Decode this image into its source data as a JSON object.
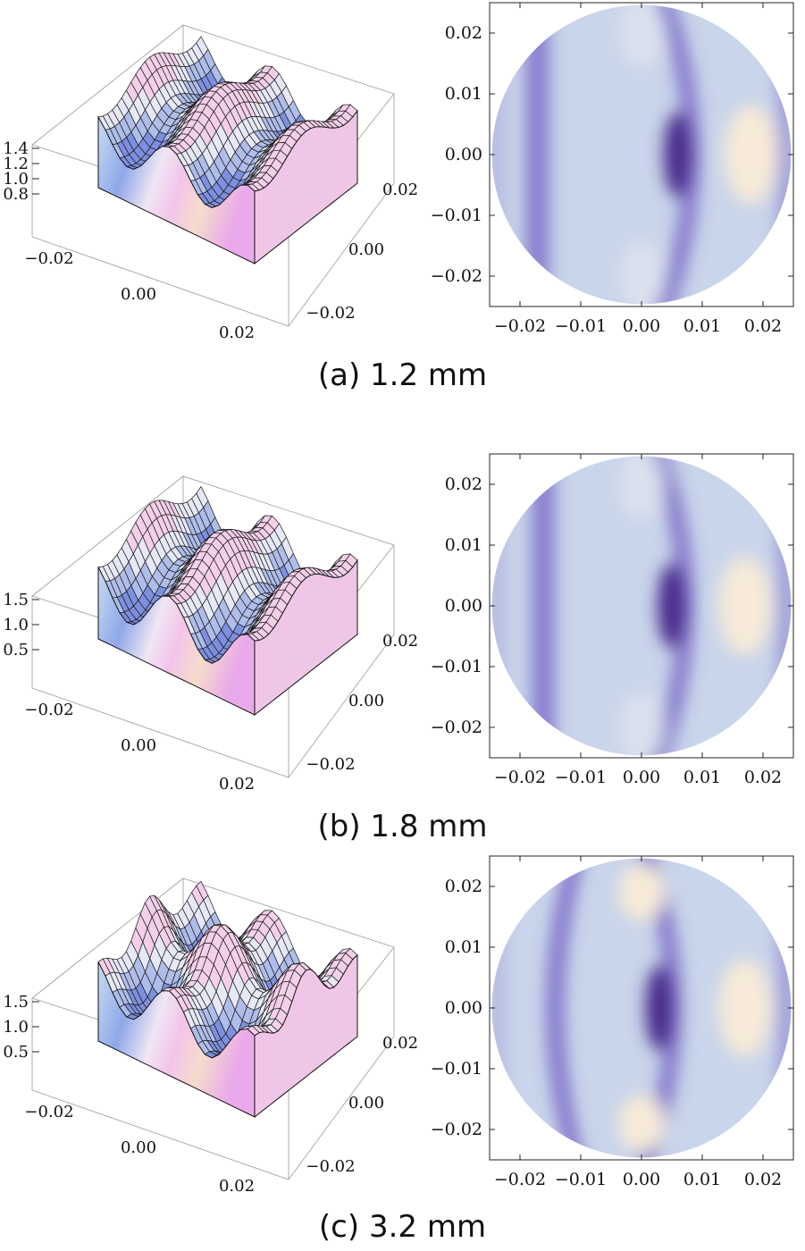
{
  "panels": [
    {
      "caption": "(a) 1.2 mm",
      "surface": {
        "z_ticks": [
          "1.4",
          "1.2",
          "1.0",
          "0.8"
        ],
        "x_ticks": [
          "−0.02",
          "0.00",
          "0.02"
        ],
        "y_ticks": [
          "0.02",
          "0.00",
          "−0.02"
        ]
      },
      "density": {
        "x_ticks": [
          "−0.02",
          "−0.01",
          "0.00",
          "0.01",
          "0.02"
        ],
        "y_ticks": [
          "0.02",
          "0.01",
          "0.00",
          "−0.01",
          "−0.02"
        ]
      }
    },
    {
      "caption": "(b) 1.8 mm",
      "surface": {
        "z_ticks": [
          "1.5",
          "1.0",
          "0.5"
        ],
        "x_ticks": [
          "−0.02",
          "0.00",
          "0.02"
        ],
        "y_ticks": [
          "0.02",
          "0.00",
          "−0.02"
        ]
      },
      "density": {
        "x_ticks": [
          "−0.02",
          "−0.01",
          "0.00",
          "0.01",
          "0.02"
        ],
        "y_ticks": [
          "0.02",
          "0.01",
          "0.00",
          "−0.01",
          "−0.02"
        ]
      }
    },
    {
      "caption": "(c) 3.2 mm",
      "surface": {
        "z_ticks": [
          "1.5",
          "1.0",
          "0.5"
        ],
        "x_ticks": [
          "−0.02",
          "0.00",
          "0.02"
        ],
        "y_ticks": [
          "0.02",
          "0.00",
          "−0.02"
        ]
      },
      "density": {
        "x_ticks": [
          "−0.02",
          "−0.01",
          "0.00",
          "0.01",
          "0.02"
        ],
        "y_ticks": [
          "0.02",
          "0.01",
          "0.00",
          "−0.01",
          "−0.02"
        ]
      }
    }
  ],
  "chart_data": [
    {
      "type": "surface3d",
      "panel": "a",
      "x_range": [
        -0.025,
        0.025
      ],
      "y_range": [
        -0.025,
        0.025
      ],
      "z_range": [
        0.7,
        1.45
      ],
      "z_ticks": [
        0.8,
        1.0,
        1.2,
        1.4
      ]
    },
    {
      "type": "heatmap",
      "panel": "a",
      "shape": "disk",
      "radius": 0.025,
      "x_range": [
        -0.025,
        0.025
      ],
      "y_range": [
        -0.025,
        0.025
      ],
      "features": [
        {
          "kind": "minimum",
          "x": 0.006,
          "y": 0.0
        },
        {
          "kind": "maximum",
          "x": 0.018,
          "y": 0.0
        },
        {
          "kind": "dark-band",
          "x": -0.017
        }
      ]
    },
    {
      "type": "surface3d",
      "panel": "b",
      "x_range": [
        -0.025,
        0.025
      ],
      "y_range": [
        -0.025,
        0.025
      ],
      "z_range": [
        0.4,
        1.6
      ],
      "z_ticks": [
        0.5,
        1.0,
        1.5
      ]
    },
    {
      "type": "heatmap",
      "panel": "b",
      "shape": "disk",
      "radius": 0.025,
      "x_range": [
        -0.025,
        0.025
      ],
      "y_range": [
        -0.025,
        0.025
      ],
      "features": [
        {
          "kind": "minimum",
          "x": 0.005,
          "y": 0.0
        },
        {
          "kind": "maximum",
          "x": 0.017,
          "y": 0.0
        },
        {
          "kind": "dark-band",
          "x": -0.016
        }
      ]
    },
    {
      "type": "surface3d",
      "panel": "c",
      "x_range": [
        -0.025,
        0.025
      ],
      "y_range": [
        -0.025,
        0.025
      ],
      "z_range": [
        0.3,
        1.8
      ],
      "z_ticks": [
        0.5,
        1.0,
        1.5
      ]
    },
    {
      "type": "heatmap",
      "panel": "c",
      "shape": "disk",
      "radius": 0.025,
      "x_range": [
        -0.025,
        0.025
      ],
      "y_range": [
        -0.025,
        0.025
      ],
      "features": [
        {
          "kind": "minimum",
          "x": 0.003,
          "y": 0.0
        },
        {
          "kind": "maximum",
          "x": 0.017,
          "y": 0.0
        },
        {
          "kind": "maximum",
          "x": 0.0,
          "y": 0.019
        },
        {
          "kind": "maximum",
          "x": 0.0,
          "y": -0.019
        },
        {
          "kind": "dark-band",
          "x": -0.012
        }
      ]
    }
  ],
  "colors": {
    "dark_purple": "#4a2a8c",
    "mid_purple": "#7b6cc8",
    "light_blue": "#c9d5ea",
    "cream": "#f7ead8",
    "pink": "#f2c9ec"
  }
}
